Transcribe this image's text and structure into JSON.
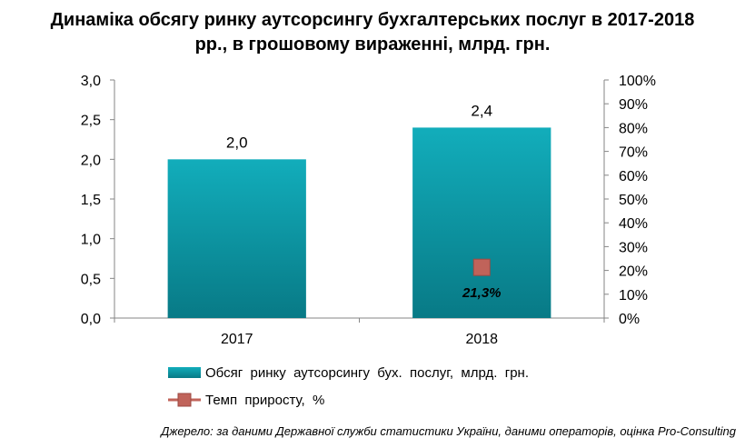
{
  "title_line1": "Динаміка обсягу ринку аутсорсингу бухгалтерських послуг в 2017-2018",
  "title_line2": "рр., в грошовому вираженні, млрд. грн.",
  "source": "Джерело: за даними Державної служби статистики України, даними операторів, оцінка Pro-Consulting",
  "chart_data": {
    "type": "bar",
    "categories": [
      "2017",
      "2018"
    ],
    "series": [
      {
        "name": "Обсяг  ринку  аутсорсингу  бух.  послуг,  млрд.  грн.",
        "type": "bar",
        "axis": "left",
        "values": [
          2.0,
          2.4
        ],
        "labels": [
          "2,0",
          "2,4"
        ],
        "color": "#0fa3b1"
      },
      {
        "name": "Темп  приросту,  %",
        "type": "marker",
        "axis": "right",
        "values": [
          null,
          21.3
        ],
        "labels": [
          null,
          "21,3%"
        ],
        "color": "#c0635a"
      }
    ],
    "ylim": [
      0,
      3.0
    ],
    "y_ticks": [
      "0,0",
      "0,5",
      "1,0",
      "1,5",
      "2,0",
      "2,5",
      "3,0"
    ],
    "y2lim": [
      0,
      100
    ],
    "y2_ticks": [
      "0%",
      "10%",
      "20%",
      "30%",
      "40%",
      "50%",
      "60%",
      "70%",
      "80%",
      "90%",
      "100%"
    ],
    "grid": false,
    "legend_position": "bottom"
  }
}
